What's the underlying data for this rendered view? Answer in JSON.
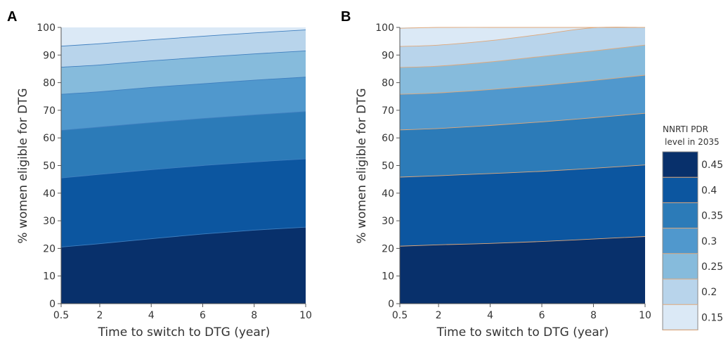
{
  "colors": {
    "bands": [
      "#08306b",
      "#0c56a0",
      "#2c7bb8",
      "#5098cd",
      "#86bbdc",
      "#b8d4eb",
      "#dbe9f6"
    ],
    "boundary_A": "#3f7fbf",
    "boundary_B": "#e0a87a",
    "axis": "#555555"
  },
  "chart_data": [
    {
      "type": "area",
      "panel_label": "A",
      "xlabel": "Time to switch to DTG (year)",
      "ylabel": "% women eligible for DTG",
      "xlim": [
        0.5,
        10
      ],
      "ylim": [
        0,
        100
      ],
      "x": [
        0.5,
        2,
        4,
        6,
        8,
        10
      ],
      "xticks": [
        0.5,
        2,
        4,
        6,
        8,
        10
      ],
      "xtick_labels": [
        "0.5",
        "2",
        "4",
        "6",
        "8",
        "10"
      ],
      "yticks": [
        0,
        10,
        20,
        30,
        40,
        50,
        60,
        70,
        80,
        90,
        100
      ],
      "ytick_labels": [
        "0",
        "10",
        "20",
        "30",
        "40",
        "50",
        "60",
        "70",
        "80",
        "90",
        "100"
      ],
      "contour_levels": [
        0.45,
        0.4,
        0.35,
        0.3,
        0.25,
        0.2
      ],
      "boundaries": [
        [
          20.5,
          21.7,
          23.5,
          25.2,
          26.6,
          27.7
        ],
        [
          45.5,
          46.8,
          48.5,
          50.0,
          51.3,
          52.4
        ],
        [
          62.7,
          63.9,
          65.5,
          67.0,
          68.3,
          69.5
        ],
        [
          75.8,
          76.7,
          78.3,
          79.6,
          80.9,
          82.0
        ],
        [
          85.6,
          86.4,
          87.9,
          89.2,
          90.4,
          91.5
        ],
        [
          93.2,
          94.1,
          95.5,
          96.8,
          98.0,
          99.1
        ]
      ]
    },
    {
      "type": "area",
      "panel_label": "B",
      "xlabel": "Time to switch to DTG (year)",
      "ylabel": "% women eligible for DTG",
      "xlim": [
        0.5,
        10
      ],
      "ylim": [
        0,
        100
      ],
      "x": [
        0.5,
        2,
        4,
        6,
        8,
        10
      ],
      "xticks": [
        0.5,
        2,
        4,
        6,
        8,
        10
      ],
      "xtick_labels": [
        "0.5",
        "2",
        "4",
        "6",
        "8",
        "10"
      ],
      "yticks": [
        0,
        10,
        20,
        30,
        40,
        50,
        60,
        70,
        80,
        90,
        100
      ],
      "ytick_labels": [
        "0",
        "10",
        "20",
        "30",
        "40",
        "50",
        "60",
        "70",
        "80",
        "90",
        "100"
      ],
      "contour_levels": [
        0.45,
        0.4,
        0.35,
        0.3,
        0.25,
        0.2,
        0.15
      ],
      "boundaries": [
        [
          20.8,
          21.3,
          21.8,
          22.5,
          23.4,
          24.3
        ],
        [
          45.8,
          46.3,
          47.1,
          47.9,
          49.0,
          50.2
        ],
        [
          62.9,
          63.4,
          64.5,
          65.8,
          67.3,
          68.9
        ],
        [
          75.8,
          76.3,
          77.5,
          79.0,
          80.8,
          82.7
        ],
        [
          85.5,
          86.0,
          87.5,
          89.5,
          91.5,
          93.6
        ],
        [
          93.1,
          93.6,
          95.2,
          97.5,
          99.9,
          100.0
        ],
        [
          99.7,
          100.0,
          100.0,
          100.0,
          100.0,
          100.0
        ]
      ],
      "colorbar": {
        "title_lines": [
          "NNRTI PDR",
          "level in 2035"
        ],
        "ticks": [
          0.45,
          0.4,
          0.35,
          0.3,
          0.25,
          0.2,
          0.15
        ],
        "tick_labels": [
          "0.45",
          "0.4",
          "0.35",
          "0.3",
          "0.25",
          "0.2",
          "0.15"
        ]
      }
    }
  ]
}
